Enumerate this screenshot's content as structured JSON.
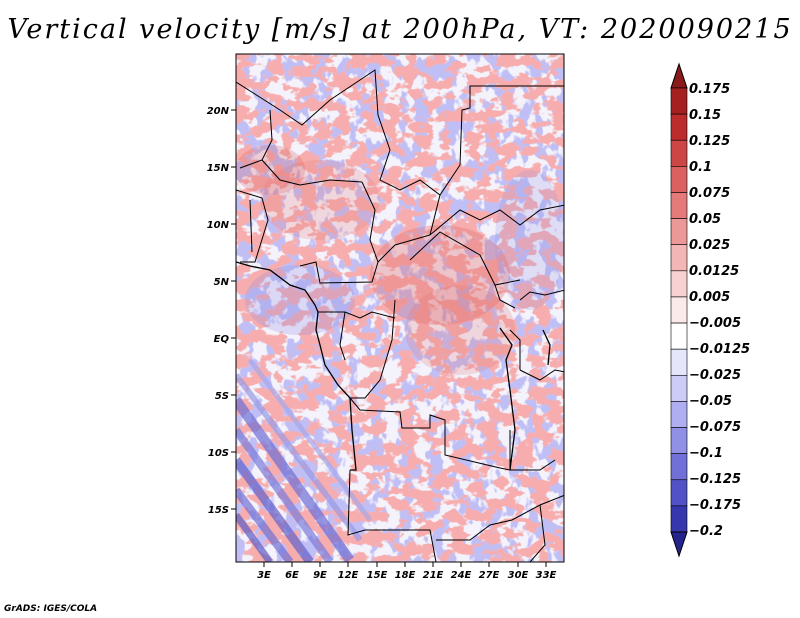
{
  "title": "Vertical velocity [m/s] at 200hPa, VT: 2020090215",
  "credit": "GrADS: IGES/COLA",
  "y_ticks": [
    "20N",
    "15N",
    "10N",
    "5N",
    "EQ",
    "5S",
    "10S",
    "15S"
  ],
  "x_ticks": [
    "3E",
    "6E",
    "9E",
    "12E",
    "15E",
    "18E",
    "21E",
    "24E",
    "27E",
    "30E",
    "33E"
  ],
  "colorbar": {
    "labels": [
      "0.175",
      "0.15",
      "0.125",
      "0.1",
      "0.075",
      "0.05",
      "0.025",
      "0.0125",
      "0.005",
      "−0.005",
      "−0.0125",
      "−0.025",
      "−0.05",
      "−0.075",
      "−0.1",
      "−0.125",
      "−0.175",
      "−0.2"
    ],
    "colors": [
      "#8b1a1a",
      "#a52020",
      "#bc2c2c",
      "#cd4646",
      "#db6060",
      "#e47a7a",
      "#ec9898",
      "#f3b6b6",
      "#f8d2d2",
      "#fbeaea",
      "#ffffff",
      "#e6e6fb",
      "#ccccf6",
      "#aeaef0",
      "#9090e6",
      "#7070d8",
      "#5252c6",
      "#3737ad",
      "#24248f"
    ]
  }
}
